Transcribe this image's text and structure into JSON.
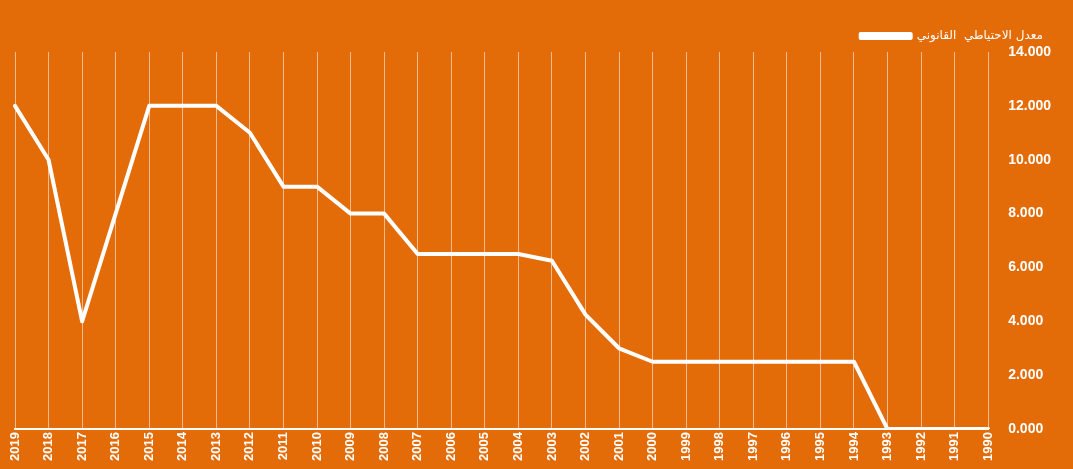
{
  "chart_data": {
    "type": "line",
    "categories": [
      "2019",
      "2018",
      "2017",
      "2016",
      "2015",
      "2014",
      "2013",
      "2012",
      "2011",
      "2010",
      "2009",
      "2008",
      "2007",
      "2006",
      "2005",
      "2004",
      "2003",
      "2002",
      "2001",
      "2000",
      "1999",
      "1998",
      "1997",
      "1996",
      "1995",
      "1994",
      "1993",
      "1992",
      "1991",
      "1990"
    ],
    "series": [
      {
        "name": "معدل الاحتياطي  القانوني",
        "color": "#ffffff",
        "values": [
          12,
          10,
          4,
          8,
          12,
          12,
          12,
          11,
          9,
          9,
          8,
          8,
          6.5,
          6.5,
          6.5,
          6.5,
          6.25,
          4.25,
          3,
          2.5,
          2.5,
          2.5,
          2.5,
          2.5,
          2.5,
          2.5,
          0,
          0,
          0,
          0
        ]
      }
    ],
    "ylim": [
      0,
      14
    ],
    "yticks": [
      {
        "value": 0,
        "label": "0.000"
      },
      {
        "value": 2,
        "label": "2.000"
      },
      {
        "value": 4,
        "label": "4.000"
      },
      {
        "value": 6,
        "label": "6.000"
      },
      {
        "value": 8,
        "label": "8.000"
      },
      {
        "value": 10,
        "label": "10.000"
      },
      {
        "value": 12,
        "label": "12.000"
      },
      {
        "value": 14,
        "label": "14.000"
      }
    ],
    "grid": "x",
    "legend": "top right",
    "marker": "none",
    "line_style": "solid"
  }
}
